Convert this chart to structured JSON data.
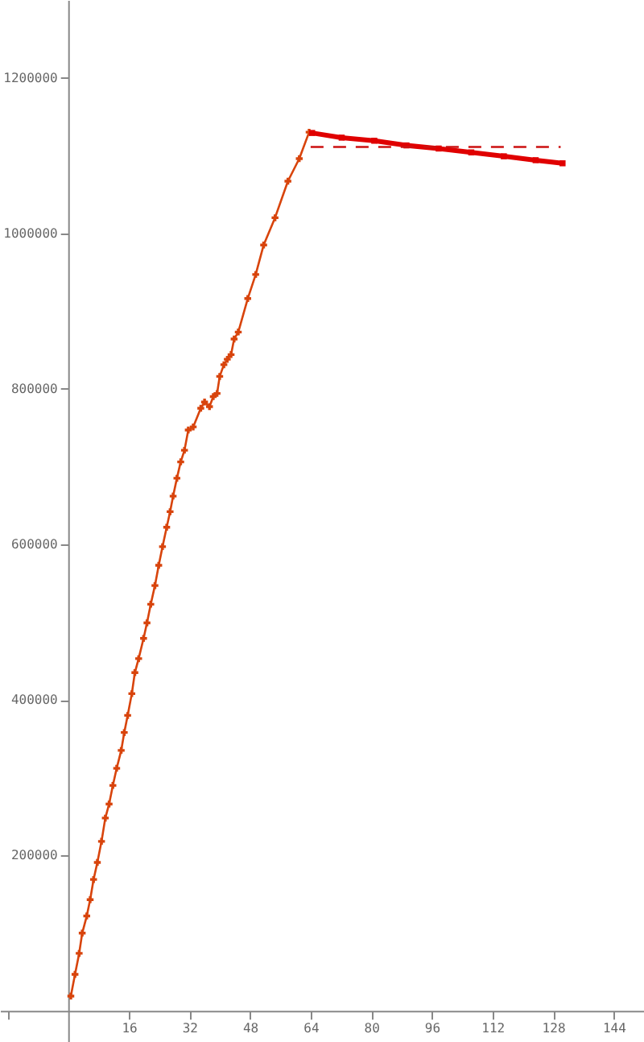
{
  "chart_data": {
    "type": "line",
    "xlim": [
      -18,
      152
    ],
    "ylim": [
      -40000,
      1300000
    ],
    "xticks": [
      {
        "value": -16,
        "label": null
      },
      16,
      32,
      48,
      64,
      80,
      96,
      112,
      128,
      144
    ],
    "yticks": [
      200000,
      400000,
      600000,
      800000,
      1000000,
      1200000
    ],
    "grid": false,
    "series": [
      {
        "color": "#d8440c",
        "marker": "cross",
        "line_style": "solid",
        "x": [
          0.7,
          1.8,
          2.9,
          3.7,
          4.9,
          5.8,
          6.7,
          7.7,
          8.8,
          9.8,
          10.8,
          11.8,
          12.8,
          14,
          14.8,
          15.7,
          16.8,
          17.6,
          18.6,
          19.9,
          20.8,
          21.8,
          22.9,
          23.9,
          24.9,
          26,
          26.9,
          27.7,
          28.7,
          29.7,
          30.7,
          31.7,
          33,
          35,
          36,
          37.3,
          38.3,
          39.3,
          40,
          41.1,
          42,
          43,
          43.8,
          44.9,
          47.4,
          49.5,
          51.6,
          54.6,
          58,
          61,
          63.6
        ],
        "values": [
          19000,
          47000,
          74000,
          100000,
          122000,
          143000,
          169000,
          191000,
          218000,
          248000,
          266000,
          290000,
          312000,
          335000,
          358000,
          380000,
          408000,
          435000,
          453000,
          479000,
          499000,
          523000,
          547000,
          573000,
          597000,
          622000,
          642000,
          662000,
          685000,
          706000,
          721000,
          747000,
          751000,
          775000,
          783000,
          777000,
          790000,
          794000,
          816000,
          831000,
          838000,
          844000,
          864000,
          873000,
          916000,
          947000,
          985000,
          1020000,
          1067000,
          1096000,
          1130000
        ]
      },
      {
        "color": "#e00000",
        "marker": "square",
        "line_style": "solid",
        "x": [
          64.4,
          72.2,
          80.8,
          89.3,
          97.8,
          106.4,
          115,
          123.4,
          130.5
        ],
        "values": [
          1129000,
          1123000,
          1119000,
          1113000,
          1109000,
          1104000,
          1099000,
          1094000,
          1090000
        ]
      },
      {
        "color": "#cc1111",
        "marker": "none",
        "line_style": "dashed",
        "x": [
          64,
          130
        ],
        "values": [
          1111000,
          1111000
        ]
      }
    ]
  }
}
